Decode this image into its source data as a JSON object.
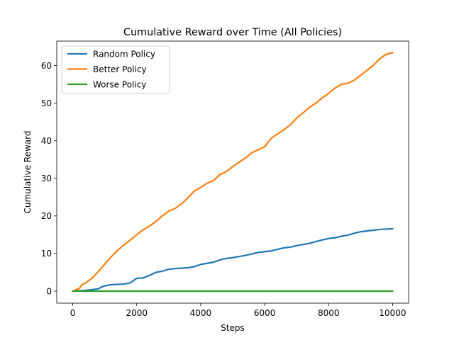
{
  "chart_data": {
    "type": "line",
    "title": "Cumulative Reward over Time (All Policies)",
    "xlabel": "Steps",
    "ylabel": "Cumulative Reward",
    "xlim": [
      -500,
      10500
    ],
    "ylim": [
      -3.2,
      66.5
    ],
    "xticks": [
      0,
      2000,
      4000,
      6000,
      8000,
      10000
    ],
    "yticks": [
      0,
      10,
      20,
      30,
      40,
      50,
      60
    ],
    "grid": false,
    "legend_position": "top-left",
    "series": [
      {
        "name": "Random Policy",
        "color": "#1f77b4",
        "x": [
          0,
          200,
          400,
          600,
          800,
          900,
          1000,
          1200,
          1400,
          1600,
          1800,
          2000,
          2200,
          2400,
          2600,
          2800,
          3000,
          3200,
          3400,
          3600,
          3800,
          4000,
          4200,
          4400,
          4600,
          4800,
          5000,
          5200,
          5400,
          5600,
          5800,
          6000,
          6200,
          6400,
          6600,
          6800,
          7000,
          7200,
          7400,
          7600,
          7800,
          8000,
          8200,
          8400,
          8600,
          8800,
          9000,
          9200,
          9400,
          9600,
          9800,
          10000
        ],
        "y": [
          0,
          0.1,
          0.2,
          0.4,
          0.6,
          1.1,
          1.4,
          1.7,
          1.8,
          1.9,
          2.2,
          3.4,
          3.5,
          4.2,
          5.0,
          5.3,
          5.8,
          6.0,
          6.1,
          6.2,
          6.5,
          7.1,
          7.4,
          7.7,
          8.3,
          8.7,
          8.9,
          9.2,
          9.5,
          9.9,
          10.3,
          10.5,
          10.7,
          11.1,
          11.5,
          11.7,
          12.1,
          12.4,
          12.7,
          13.2,
          13.6,
          14.0,
          14.2,
          14.6,
          14.9,
          15.4,
          15.8,
          16.0,
          16.2,
          16.4,
          16.5,
          16.6
        ]
      },
      {
        "name": "Better Policy",
        "color": "#ff7f0e",
        "x": [
          0,
          200,
          300,
          400,
          600,
          800,
          1000,
          1200,
          1400,
          1600,
          1800,
          2000,
          2200,
          2400,
          2600,
          2800,
          3000,
          3200,
          3400,
          3600,
          3800,
          4000,
          4200,
          4400,
          4600,
          4800,
          5000,
          5200,
          5400,
          5600,
          5800,
          6000,
          6200,
          6400,
          6600,
          6800,
          7000,
          7200,
          7400,
          7600,
          7800,
          8000,
          8200,
          8400,
          8600,
          8800,
          9000,
          9200,
          9400,
          9600,
          9800,
          10000
        ],
        "y": [
          0,
          0.7,
          1.8,
          2.2,
          3.4,
          5.2,
          7.2,
          9.1,
          10.8,
          12.3,
          13.6,
          15.0,
          16.3,
          17.3,
          18.5,
          20.0,
          21.3,
          22.0,
          23.2,
          24.8,
          26.6,
          27.6,
          28.7,
          29.4,
          31.0,
          31.8,
          33.1,
          34.3,
          35.4,
          36.8,
          37.6,
          38.4,
          40.6,
          41.8,
          42.9,
          44.2,
          46.0,
          47.4,
          48.9,
          50.0,
          51.4,
          52.6,
          54.0,
          55.0,
          55.3,
          56.1,
          57.4,
          58.7,
          60.1,
          61.8,
          63.0,
          63.4
        ]
      },
      {
        "name": "Worse Policy",
        "color": "#2ca02c",
        "x": [
          0,
          10000
        ],
        "y": [
          0,
          0
        ]
      }
    ]
  }
}
